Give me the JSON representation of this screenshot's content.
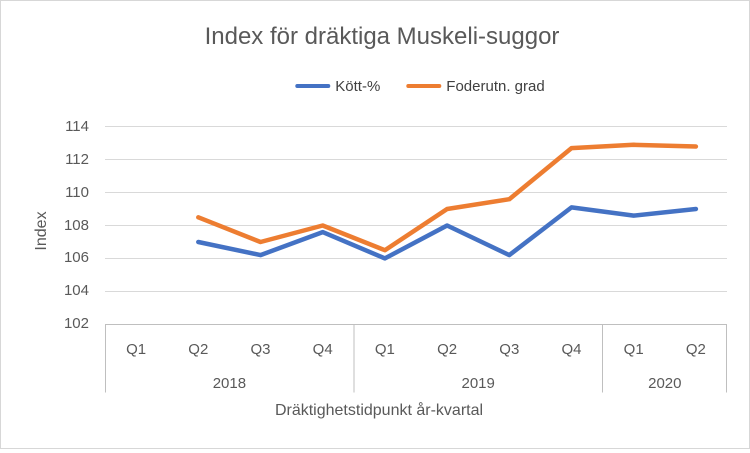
{
  "chart_data": {
    "type": "line",
    "title": "Index för dräktiga Muskeli-suggor",
    "xlabel": "Dräktighetstidpunkt år-kvartal",
    "ylabel": "Index",
    "categories": [
      "2018 Q1",
      "2018 Q2",
      "2018 Q3",
      "2018 Q4",
      "2019 Q1",
      "2019 Q2",
      "2019 Q3",
      "2019 Q4",
      "2020 Q1",
      "2020 Q2"
    ],
    "x_groups": [
      {
        "label": "2018",
        "quarters": [
          "Q1",
          "Q2",
          "Q3",
          "Q4"
        ]
      },
      {
        "label": "2019",
        "quarters": [
          "Q1",
          "Q2",
          "Q3",
          "Q4"
        ]
      },
      {
        "label": "2020",
        "quarters": [
          "Q1",
          "Q2"
        ]
      }
    ],
    "series": [
      {
        "name": "Kött-%",
        "color": "#4472C4",
        "values": [
          null,
          107.0,
          106.2,
          107.6,
          106.0,
          108.0,
          106.2,
          109.1,
          108.6,
          109.0
        ]
      },
      {
        "name": "Foderutn. grad",
        "color": "#ED7D31",
        "values": [
          null,
          108.5,
          107.0,
          108.0,
          106.5,
          109.0,
          109.6,
          112.7,
          112.9,
          112.8
        ]
      }
    ],
    "ylim": [
      102,
      114
    ],
    "y_ticks": [
      114,
      112,
      110,
      108,
      106,
      104,
      102
    ],
    "grid": true,
    "legend_position": "top"
  },
  "style": {
    "grid_color": "#D9D9D9",
    "axis_color": "#BFBFBF",
    "text_color": "#595959",
    "line_width": 4.5
  }
}
